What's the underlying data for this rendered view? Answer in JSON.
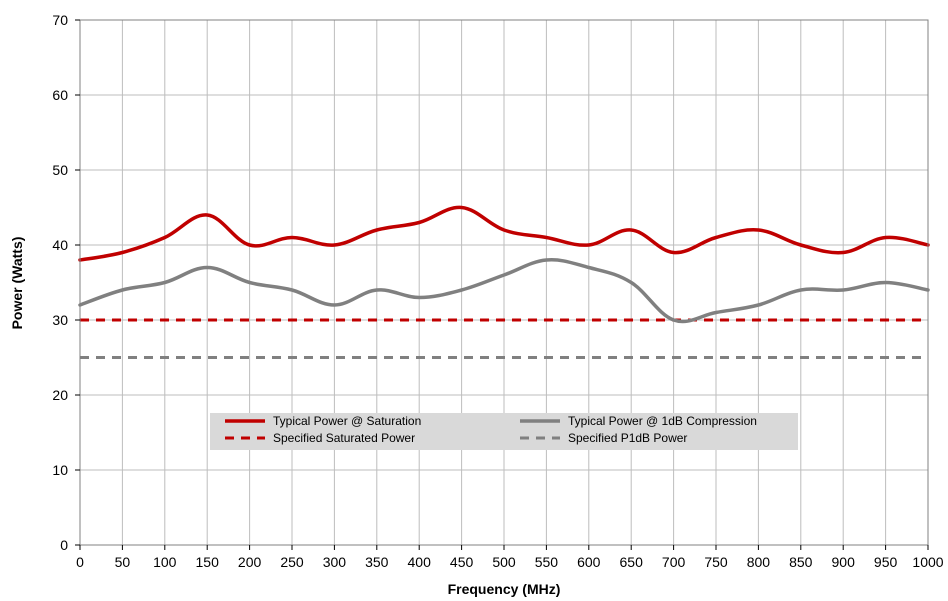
{
  "chart_data": {
    "type": "line",
    "xlabel": "Frequency (MHz)",
    "ylabel": "Power (Watts)",
    "xlim": [
      0,
      1000
    ],
    "ylim": [
      0,
      70
    ],
    "x_ticks": [
      0,
      50,
      100,
      150,
      200,
      250,
      300,
      350,
      400,
      450,
      500,
      550,
      600,
      650,
      700,
      750,
      800,
      850,
      900,
      950,
      1000
    ],
    "y_ticks": [
      0,
      10,
      20,
      30,
      40,
      50,
      60,
      70
    ],
    "grid": true,
    "legend_position": "center",
    "series": [
      {
        "name": "Typical Power @ Saturation",
        "color": "#c00000",
        "style": "solid",
        "x": [
          0,
          50,
          100,
          150,
          200,
          250,
          300,
          350,
          400,
          450,
          500,
          550,
          600,
          650,
          700,
          750,
          800,
          850,
          900,
          950,
          1000
        ],
        "values": [
          38,
          39,
          41,
          44,
          40,
          41,
          40,
          42,
          43,
          45,
          42,
          41,
          40,
          42,
          39,
          41,
          42,
          40,
          39,
          41,
          40
        ]
      },
      {
        "name": "Typical Power @ 1dB Compression",
        "color": "#808080",
        "style": "solid",
        "x": [
          0,
          50,
          100,
          150,
          200,
          250,
          300,
          350,
          400,
          450,
          500,
          550,
          600,
          650,
          700,
          750,
          800,
          850,
          900,
          950,
          1000
        ],
        "values": [
          32,
          34,
          35,
          37,
          35,
          34,
          32,
          34,
          33,
          34,
          36,
          38,
          37,
          35,
          30,
          31,
          32,
          34,
          34,
          35,
          34
        ]
      },
      {
        "name": "Specified Saturated Power",
        "color": "#c00000",
        "style": "dashed",
        "x": [
          0,
          1000
        ],
        "values": [
          30,
          30
        ]
      },
      {
        "name": "Specified P1dB Power",
        "color": "#808080",
        "style": "dashed",
        "x": [
          0,
          1000
        ],
        "values": [
          25,
          25
        ]
      }
    ]
  }
}
